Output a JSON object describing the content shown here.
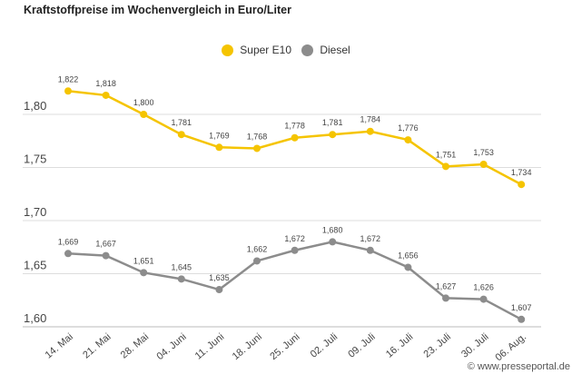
{
  "title": "Kraftstoffpreise im Wochenvergleich in Euro/Liter",
  "credit": "© www.presseportal.de",
  "chart_data": {
    "type": "line",
    "title": "Kraftstoffpreise im Wochenvergleich in Euro/Liter",
    "categories": [
      "14. Mai",
      "21. Mai",
      "28. Mai",
      "04. Juni",
      "11. Juni",
      "18. Juni",
      "25. Juni",
      "02. Juli",
      "09. Juli",
      "16. Juli",
      "23. Juli",
      "30. Juli",
      "06. Aug."
    ],
    "series": [
      {
        "name": "Super E10",
        "color": "#f5c400",
        "values": [
          1.822,
          1.818,
          1.8,
          1.781,
          1.769,
          1.768,
          1.778,
          1.781,
          1.784,
          1.776,
          1.751,
          1.753,
          1.734
        ],
        "labels": [
          "1,822",
          "1,818",
          "1,800",
          "1,781",
          "1,769",
          "1,768",
          "1,778",
          "1,781",
          "1,784",
          "1,776",
          "1,751",
          "1,753",
          "1,734"
        ]
      },
      {
        "name": "Diesel",
        "color": "#8c8c8c",
        "values": [
          1.669,
          1.667,
          1.651,
          1.645,
          1.635,
          1.662,
          1.672,
          1.68,
          1.672,
          1.656,
          1.627,
          1.626,
          1.607
        ],
        "labels": [
          "1,669",
          "1,667",
          "1,651",
          "1,645",
          "1,635",
          "1,662",
          "1,672",
          "1,680",
          "1,672",
          "1,656",
          "1,627",
          "1,626",
          "1,607"
        ]
      }
    ],
    "yticks": [
      1.6,
      1.65,
      1.7,
      1.75,
      1.8
    ],
    "ytick_labels": [
      "1,60",
      "1,65",
      "1,70",
      "1,75",
      "1,80"
    ],
    "ylim": [
      1.6,
      1.8
    ],
    "grid": true,
    "legend": "top-center"
  }
}
